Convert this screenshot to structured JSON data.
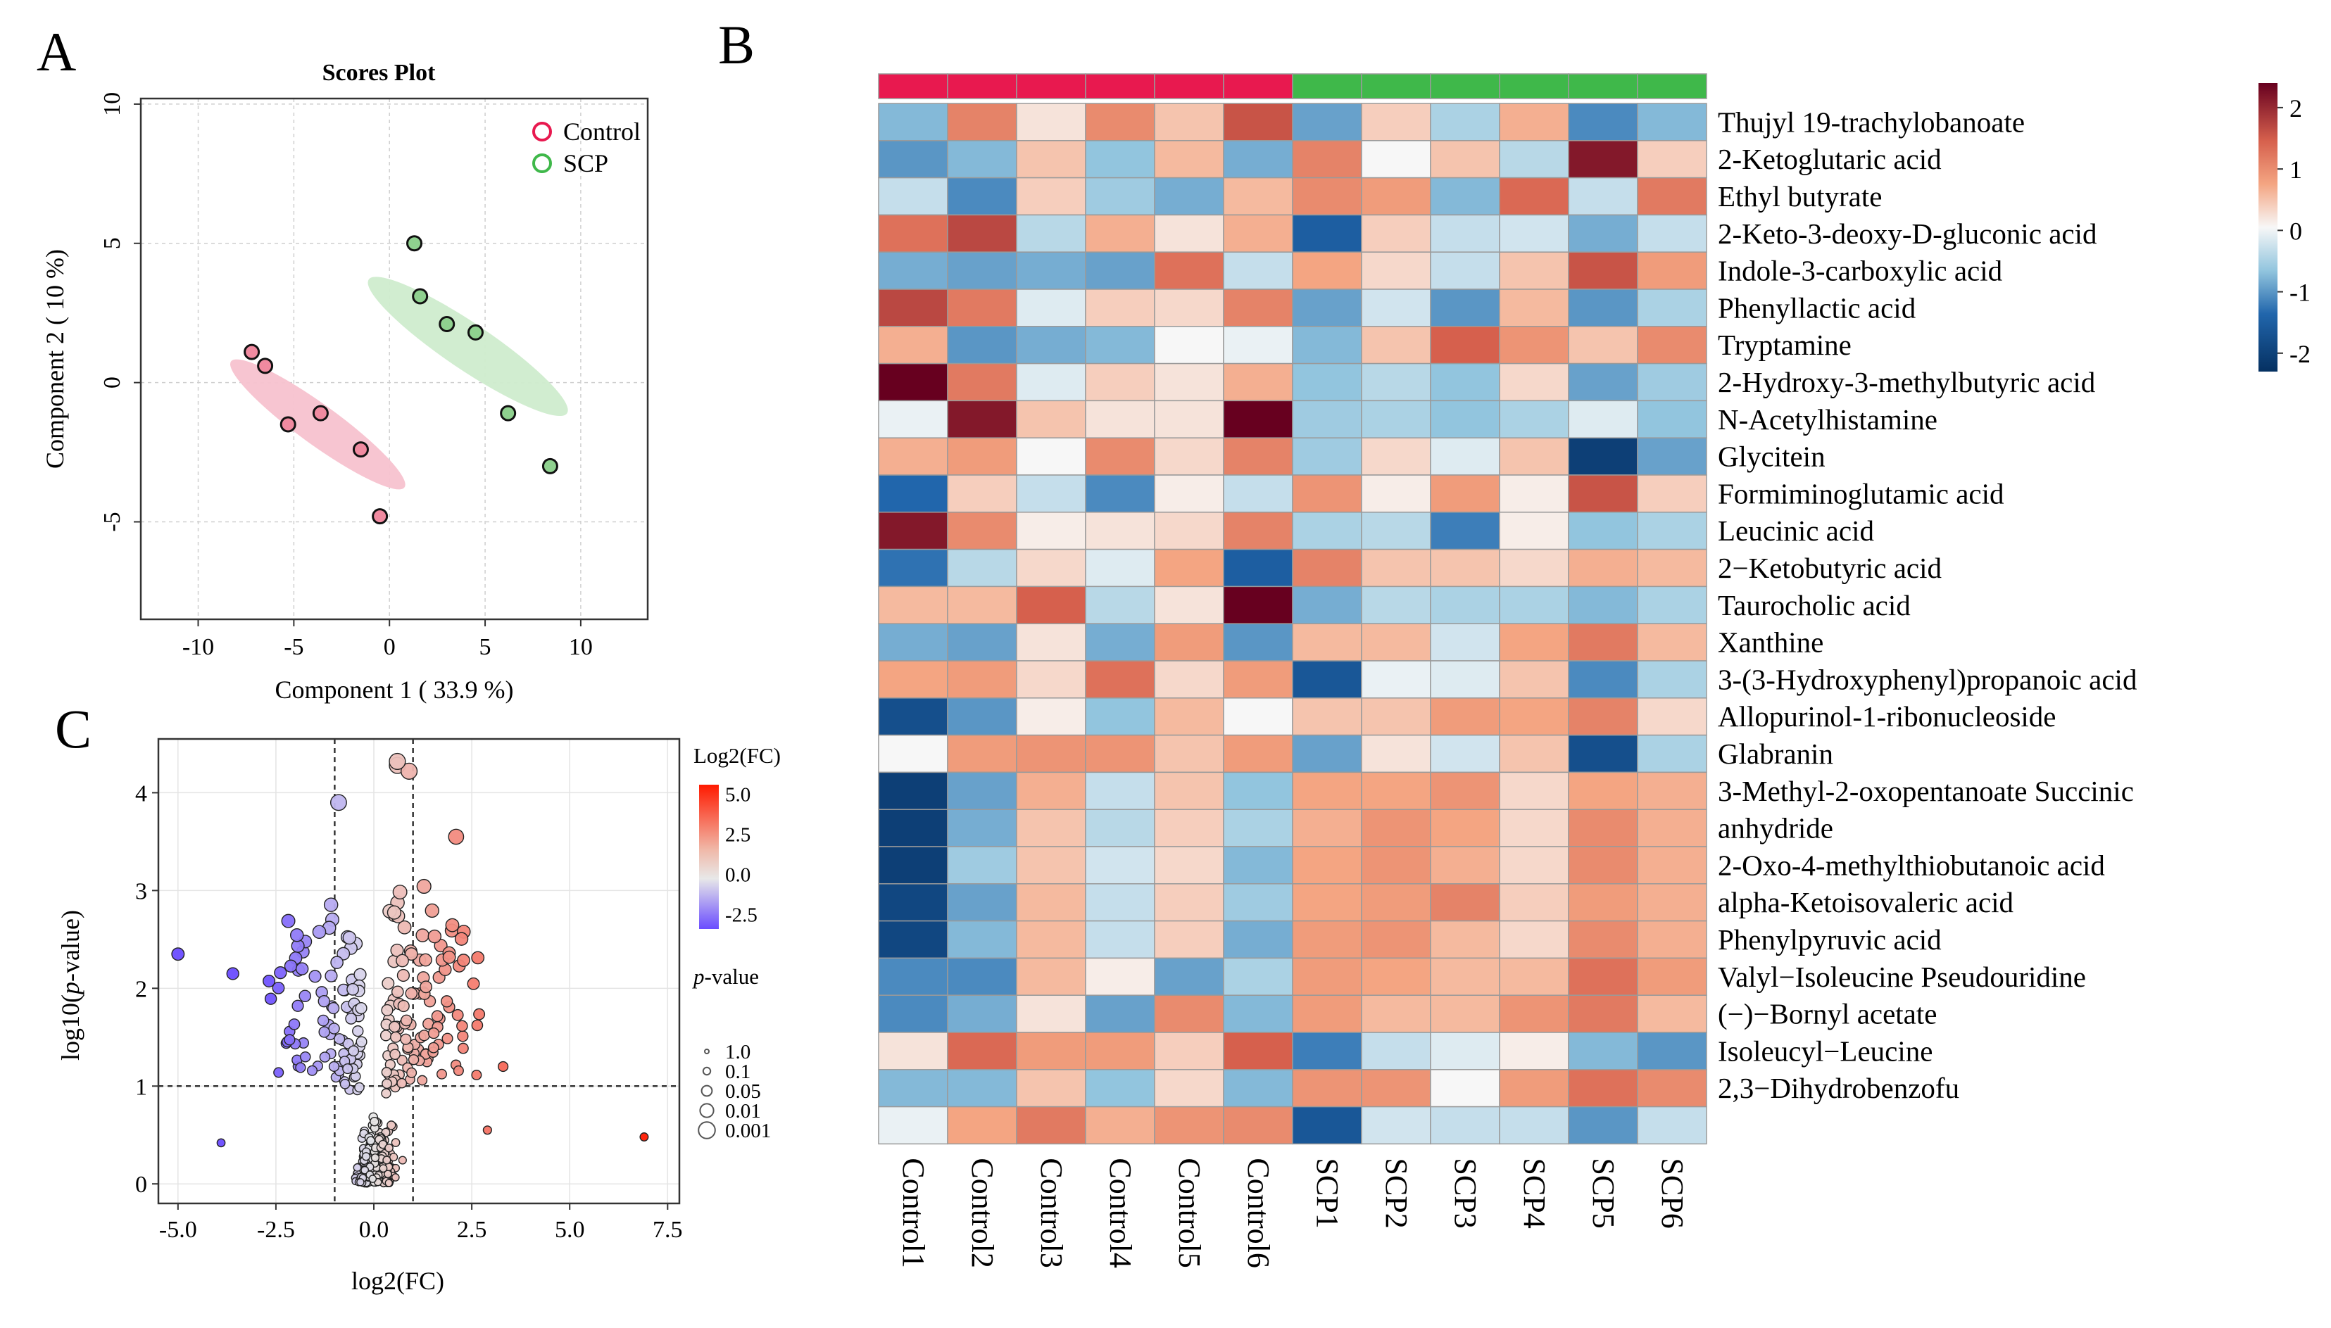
{
  "panels": {
    "a": "A",
    "b": "B",
    "c": "C"
  },
  "chart_data": [
    {
      "id": "A",
      "type": "scatter",
      "title": "Scores Plot",
      "xlabel": "Component 1 ( 33.9 %)",
      "ylabel": "Component 2 ( 10 %)",
      "xlim": [
        -13,
        13.5
      ],
      "ylim": [
        -8.5,
        10.2
      ],
      "xticks": [
        -10,
        -5,
        0,
        5,
        10
      ],
      "yticks": [
        10,
        5,
        0,
        -5
      ],
      "xtick_labels": [
        "-10",
        "-5",
        "0",
        "5",
        "10"
      ],
      "ytick_labels": [
        "10",
        "5",
        "0",
        "-5"
      ],
      "grid": true,
      "legend_position": "top-right",
      "colors": {
        "Control": "#e8194f",
        "SCP": "#3fb84a",
        "Control_fill": "#f7c2cf",
        "SCP_fill": "#cfeccd"
      },
      "series": [
        {
          "name": "Control",
          "color": "#e8194f",
          "points": [
            [
              -7.2,
              1.1
            ],
            [
              -6.5,
              0.6
            ],
            [
              -3.6,
              -1.1
            ],
            [
              -5.3,
              -1.5
            ],
            [
              -1.5,
              -2.4
            ],
            [
              -0.5,
              -4.8
            ]
          ],
          "ellipse": {
            "cx": -3.75,
            "cy": -1.5,
            "rx": 9.5,
            "ry": 1.9,
            "angle_deg": -35
          }
        },
        {
          "name": "SCP",
          "color": "#3fb84a",
          "points": [
            [
              1.3,
              5.0
            ],
            [
              1.6,
              3.1
            ],
            [
              3.0,
              2.1
            ],
            [
              4.5,
              1.8
            ],
            [
              6.2,
              -1.1
            ],
            [
              8.4,
              -3.0
            ]
          ],
          "ellipse": {
            "cx": 4.1,
            "cy": 1.3,
            "rx": 10.6,
            "ry": 2.2,
            "angle_deg": -33
          }
        }
      ]
    },
    {
      "id": "B",
      "type": "heatmap",
      "columns": [
        "Control1",
        "Control2",
        "Control3",
        "Control4",
        "Control5",
        "Control6",
        "SCP1",
        "SCP2",
        "SCP3",
        "SCP4",
        "SCP5",
        "SCP6"
      ],
      "groups": [
        "Control",
        "Control",
        "Control",
        "Control",
        "Control",
        "Control",
        "SCP",
        "SCP",
        "SCP",
        "SCP",
        "SCP",
        "SCP"
      ],
      "group_colors": {
        "Control": "#e8194f",
        "SCP": "#3fb84a"
      },
      "rows": [
        "Thujyl 19-trachylobanoate",
        "2-Ketoglutaric acid",
        "Ethyl butyrate",
        "2-Keto-3-deoxy-D-gluconic acid",
        "Indole-3-carboxylic acid",
        "Phenyllactic acid",
        "Tryptamine",
        "2-Hydroxy-3-methylbutyric acid",
        "N-Acetylhistamine",
        "Glycitein",
        "Formiminoglutamic acid",
        "Leucinic acid",
        "2−Ketobutyric acid",
        "Taurocholic acid",
        "Xanthine",
        "3-(3-Hydroxyphenyl)propanoic acid",
        "Allopurinol-1-ribonucleoside",
        "Glabranin",
        "3-Methyl-2-oxopentanoate Succinic",
        "anhydride",
        "2-Oxo-4-methylthiobutanoic acid",
        "alpha-Ketoisovaleric acid",
        "Phenylpyruvic acid",
        "Valyl−Isoleucine Pseudouridine",
        "(−)−Bornyl acetate",
        "Isoleucyl−Leucine",
        "2,3−Dihydrobenzofu",
        ""
      ],
      "values": [
        [
          -0.9,
          1.2,
          0.2,
          1.1,
          0.5,
          1.7,
          -1.1,
          0.4,
          -0.6,
          0.7,
          -1.3,
          -0.9
        ],
        [
          -1.2,
          -0.9,
          0.5,
          -0.8,
          0.6,
          -1.0,
          1.2,
          0.0,
          0.5,
          -0.5,
          2.2,
          0.4
        ],
        [
          -0.4,
          -1.3,
          0.4,
          -0.7,
          -1.0,
          0.6,
          1.1,
          0.9,
          -0.9,
          1.5,
          -0.4,
          1.3
        ],
        [
          1.4,
          1.8,
          -0.5,
          0.7,
          0.2,
          0.7,
          -1.7,
          0.4,
          -0.4,
          -0.3,
          -1.0,
          -0.4
        ],
        [
          -1.0,
          -1.1,
          -1.0,
          -1.1,
          1.4,
          -0.4,
          0.8,
          0.3,
          -0.4,
          0.5,
          1.7,
          0.9
        ],
        [
          1.8,
          1.3,
          -0.2,
          0.4,
          0.3,
          1.2,
          -1.1,
          -0.3,
          -1.2,
          0.6,
          -1.2,
          -0.6
        ],
        [
          0.7,
          -1.2,
          -1.0,
          -0.9,
          0.0,
          -0.1,
          -0.9,
          0.5,
          1.6,
          1.0,
          0.5,
          1.1
        ],
        [
          2.4,
          1.3,
          -0.2,
          0.4,
          0.2,
          0.7,
          -0.8,
          -0.5,
          -0.8,
          0.3,
          -1.1,
          -0.7
        ],
        [
          -0.1,
          2.2,
          0.5,
          0.2,
          0.2,
          2.4,
          -0.7,
          -0.6,
          -0.8,
          -0.6,
          -0.2,
          -0.8
        ],
        [
          0.7,
          0.9,
          0.0,
          1.1,
          0.3,
          1.2,
          -0.7,
          0.3,
          -0.2,
          0.5,
          -2.1,
          -1.1
        ],
        [
          -1.6,
          0.4,
          -0.4,
          -1.3,
          0.1,
          -0.4,
          1.0,
          0.1,
          0.9,
          0.1,
          1.7,
          0.4
        ],
        [
          2.2,
          1.1,
          0.1,
          0.2,
          0.3,
          1.2,
          -0.6,
          -0.5,
          -1.4,
          0.1,
          -0.8,
          -0.6
        ],
        [
          -1.5,
          -0.5,
          0.3,
          -0.2,
          0.8,
          -1.7,
          1.2,
          0.5,
          0.5,
          0.3,
          0.7,
          0.6
        ],
        [
          0.6,
          0.6,
          1.6,
          -0.5,
          0.2,
          2.4,
          -1.0,
          -0.5,
          -0.6,
          -0.6,
          -0.9,
          -0.6
        ],
        [
          -1.0,
          -1.1,
          0.2,
          -1.0,
          0.9,
          -1.2,
          0.6,
          0.6,
          -0.3,
          0.8,
          1.3,
          0.6
        ],
        [
          0.8,
          0.9,
          0.3,
          1.4,
          0.3,
          0.9,
          -1.8,
          -0.1,
          -0.2,
          0.5,
          -1.3,
          -0.6
        ],
        [
          -1.9,
          -1.2,
          0.1,
          -0.8,
          0.6,
          0.0,
          0.5,
          0.5,
          0.9,
          0.8,
          1.2,
          0.3
        ],
        [
          0.0,
          0.9,
          1.0,
          1.0,
          0.5,
          0.9,
          -1.1,
          0.2,
          -0.3,
          0.5,
          -1.9,
          -0.6
        ],
        [
          -2.1,
          -1.1,
          0.7,
          -0.4,
          0.5,
          -0.8,
          0.8,
          0.8,
          1.0,
          0.3,
          0.8,
          0.7
        ],
        [
          -2.1,
          -1.0,
          0.5,
          -0.5,
          0.4,
          -0.6,
          0.7,
          1.0,
          0.8,
          0.3,
          1.1,
          0.7
        ],
        [
          -2.1,
          -0.7,
          0.5,
          -0.3,
          0.3,
          -0.9,
          0.8,
          1.0,
          0.7,
          0.3,
          1.1,
          0.7
        ],
        [
          -2.0,
          -1.1,
          0.6,
          -0.4,
          0.4,
          -0.7,
          0.8,
          0.9,
          1.2,
          0.4,
          0.9,
          0.7
        ],
        [
          -2.0,
          -0.9,
          0.6,
          -0.4,
          0.4,
          -1.0,
          0.9,
          1.0,
          0.6,
          0.3,
          1.1,
          0.7
        ],
        [
          -1.3,
          -1.3,
          0.6,
          0.1,
          -1.1,
          -0.6,
          0.9,
          0.8,
          0.6,
          0.6,
          1.4,
          0.9
        ],
        [
          -1.3,
          -1.0,
          0.2,
          -1.1,
          1.1,
          -0.9,
          0.9,
          0.6,
          0.6,
          1.0,
          1.3,
          0.6
        ],
        [
          0.2,
          1.5,
          0.9,
          0.9,
          0.4,
          1.6,
          -1.4,
          -0.4,
          -0.2,
          0.1,
          -0.9,
          -1.2
        ],
        [
          -0.9,
          -0.9,
          0.5,
          -0.8,
          0.3,
          -0.9,
          1.0,
          1.0,
          0.0,
          0.9,
          1.4,
          1.1
        ],
        [
          -0.1,
          0.8,
          1.3,
          0.7,
          1.0,
          1.1,
          -1.8,
          -0.3,
          -0.4,
          -0.4,
          -1.2,
          -0.4
        ]
      ],
      "colorbar": {
        "min": -2.3,
        "max": 2.4,
        "ticks": [
          2,
          1,
          0,
          -1,
          -2
        ],
        "tick_labels": [
          "2",
          "1",
          "0",
          "-1",
          "-2"
        ],
        "colors": {
          "low": "#053061",
          "mid": "#f7f7f7",
          "high": "#67001f"
        }
      }
    },
    {
      "id": "C",
      "type": "scatter",
      "subtype": "volcano",
      "xlabel": "log2(FC)",
      "ylabel": "log10(p-value)",
      "ylabel_parts": [
        "log10(",
        "p",
        "-value)"
      ],
      "xlim": [
        -5.5,
        7.8
      ],
      "ylim": [
        -0.2,
        4.55
      ],
      "xticks": [
        -5.0,
        -2.5,
        0.0,
        2.5,
        5.0,
        7.5
      ],
      "yticks": [
        0,
        1,
        2,
        3,
        4
      ],
      "xtick_labels": [
        "-5.0",
        "-2.5",
        "0.0",
        "2.5",
        "5.0",
        "7.5"
      ],
      "ytick_labels": [
        "0",
        "1",
        "2",
        "3",
        "4"
      ],
      "grid": true,
      "thresholds": {
        "x": [
          -1,
          1
        ],
        "y": 1
      },
      "color_legend": {
        "title": "Log2(FC)",
        "ticks": [
          5.0,
          2.5,
          0.0,
          -2.5
        ],
        "tick_labels": [
          "5.0",
          "2.5",
          "0.0",
          "-2.5"
        ],
        "colors": {
          "low": "#6a4cff",
          "mid": "#e8e8e8",
          "high": "#ff1a00"
        }
      },
      "size_legend": {
        "title_parts": [
          "p",
          "-value"
        ],
        "labels": [
          "1.0",
          "0.1",
          "0.05",
          "0.01",
          "0.001"
        ]
      },
      "highlighted_points": [
        [
          -5.0,
          2.35
        ],
        [
          -3.9,
          0.42
        ],
        [
          -3.6,
          2.15
        ],
        [
          6.9,
          0.48
        ],
        [
          2.1,
          3.55
        ],
        [
          3.3,
          1.2
        ],
        [
          2.9,
          0.55
        ],
        [
          0.6,
          4.28
        ],
        [
          0.9,
          4.22
        ],
        [
          -0.9,
          3.9
        ],
        [
          0.6,
          4.32
        ]
      ]
    }
  ]
}
